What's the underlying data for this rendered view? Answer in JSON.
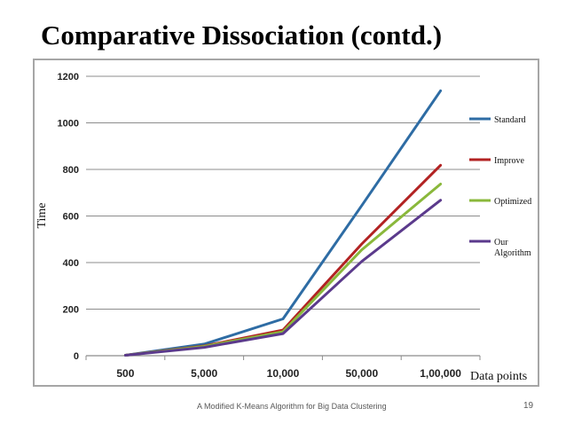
{
  "slide": {
    "title": "Comparative Dissociation (contd.)",
    "footer": "A Modified K-Means Algorithm  for Big Data Clustering",
    "page_number": "19"
  },
  "chart_data": {
    "type": "line",
    "title": "",
    "xlabel": "Data points",
    "ylabel": "Time",
    "categories": [
      "500",
      "5,000",
      "10,000",
      "50,000",
      "1,00,000"
    ],
    "ylim": [
      0,
      1200
    ],
    "yticks": [
      "0",
      "200",
      "400",
      "600",
      "800",
      "1000",
      "1200"
    ],
    "grid": true,
    "legend_position": "right",
    "series": [
      {
        "name": "Standard",
        "color": "#2e6ca4",
        "values": [
          2,
          50,
          158,
          645,
          1138
        ]
      },
      {
        "name": "Improve",
        "color": "#b22222",
        "values": [
          2,
          42,
          110,
          480,
          818
        ]
      },
      {
        "name": "Optimized",
        "color": "#8ab83b",
        "values": [
          2,
          40,
          103,
          455,
          737
        ]
      },
      {
        "name": "Our Algorithm",
        "color": "#5b3a8c",
        "values": [
          2,
          36,
          95,
          405,
          668
        ]
      }
    ]
  }
}
